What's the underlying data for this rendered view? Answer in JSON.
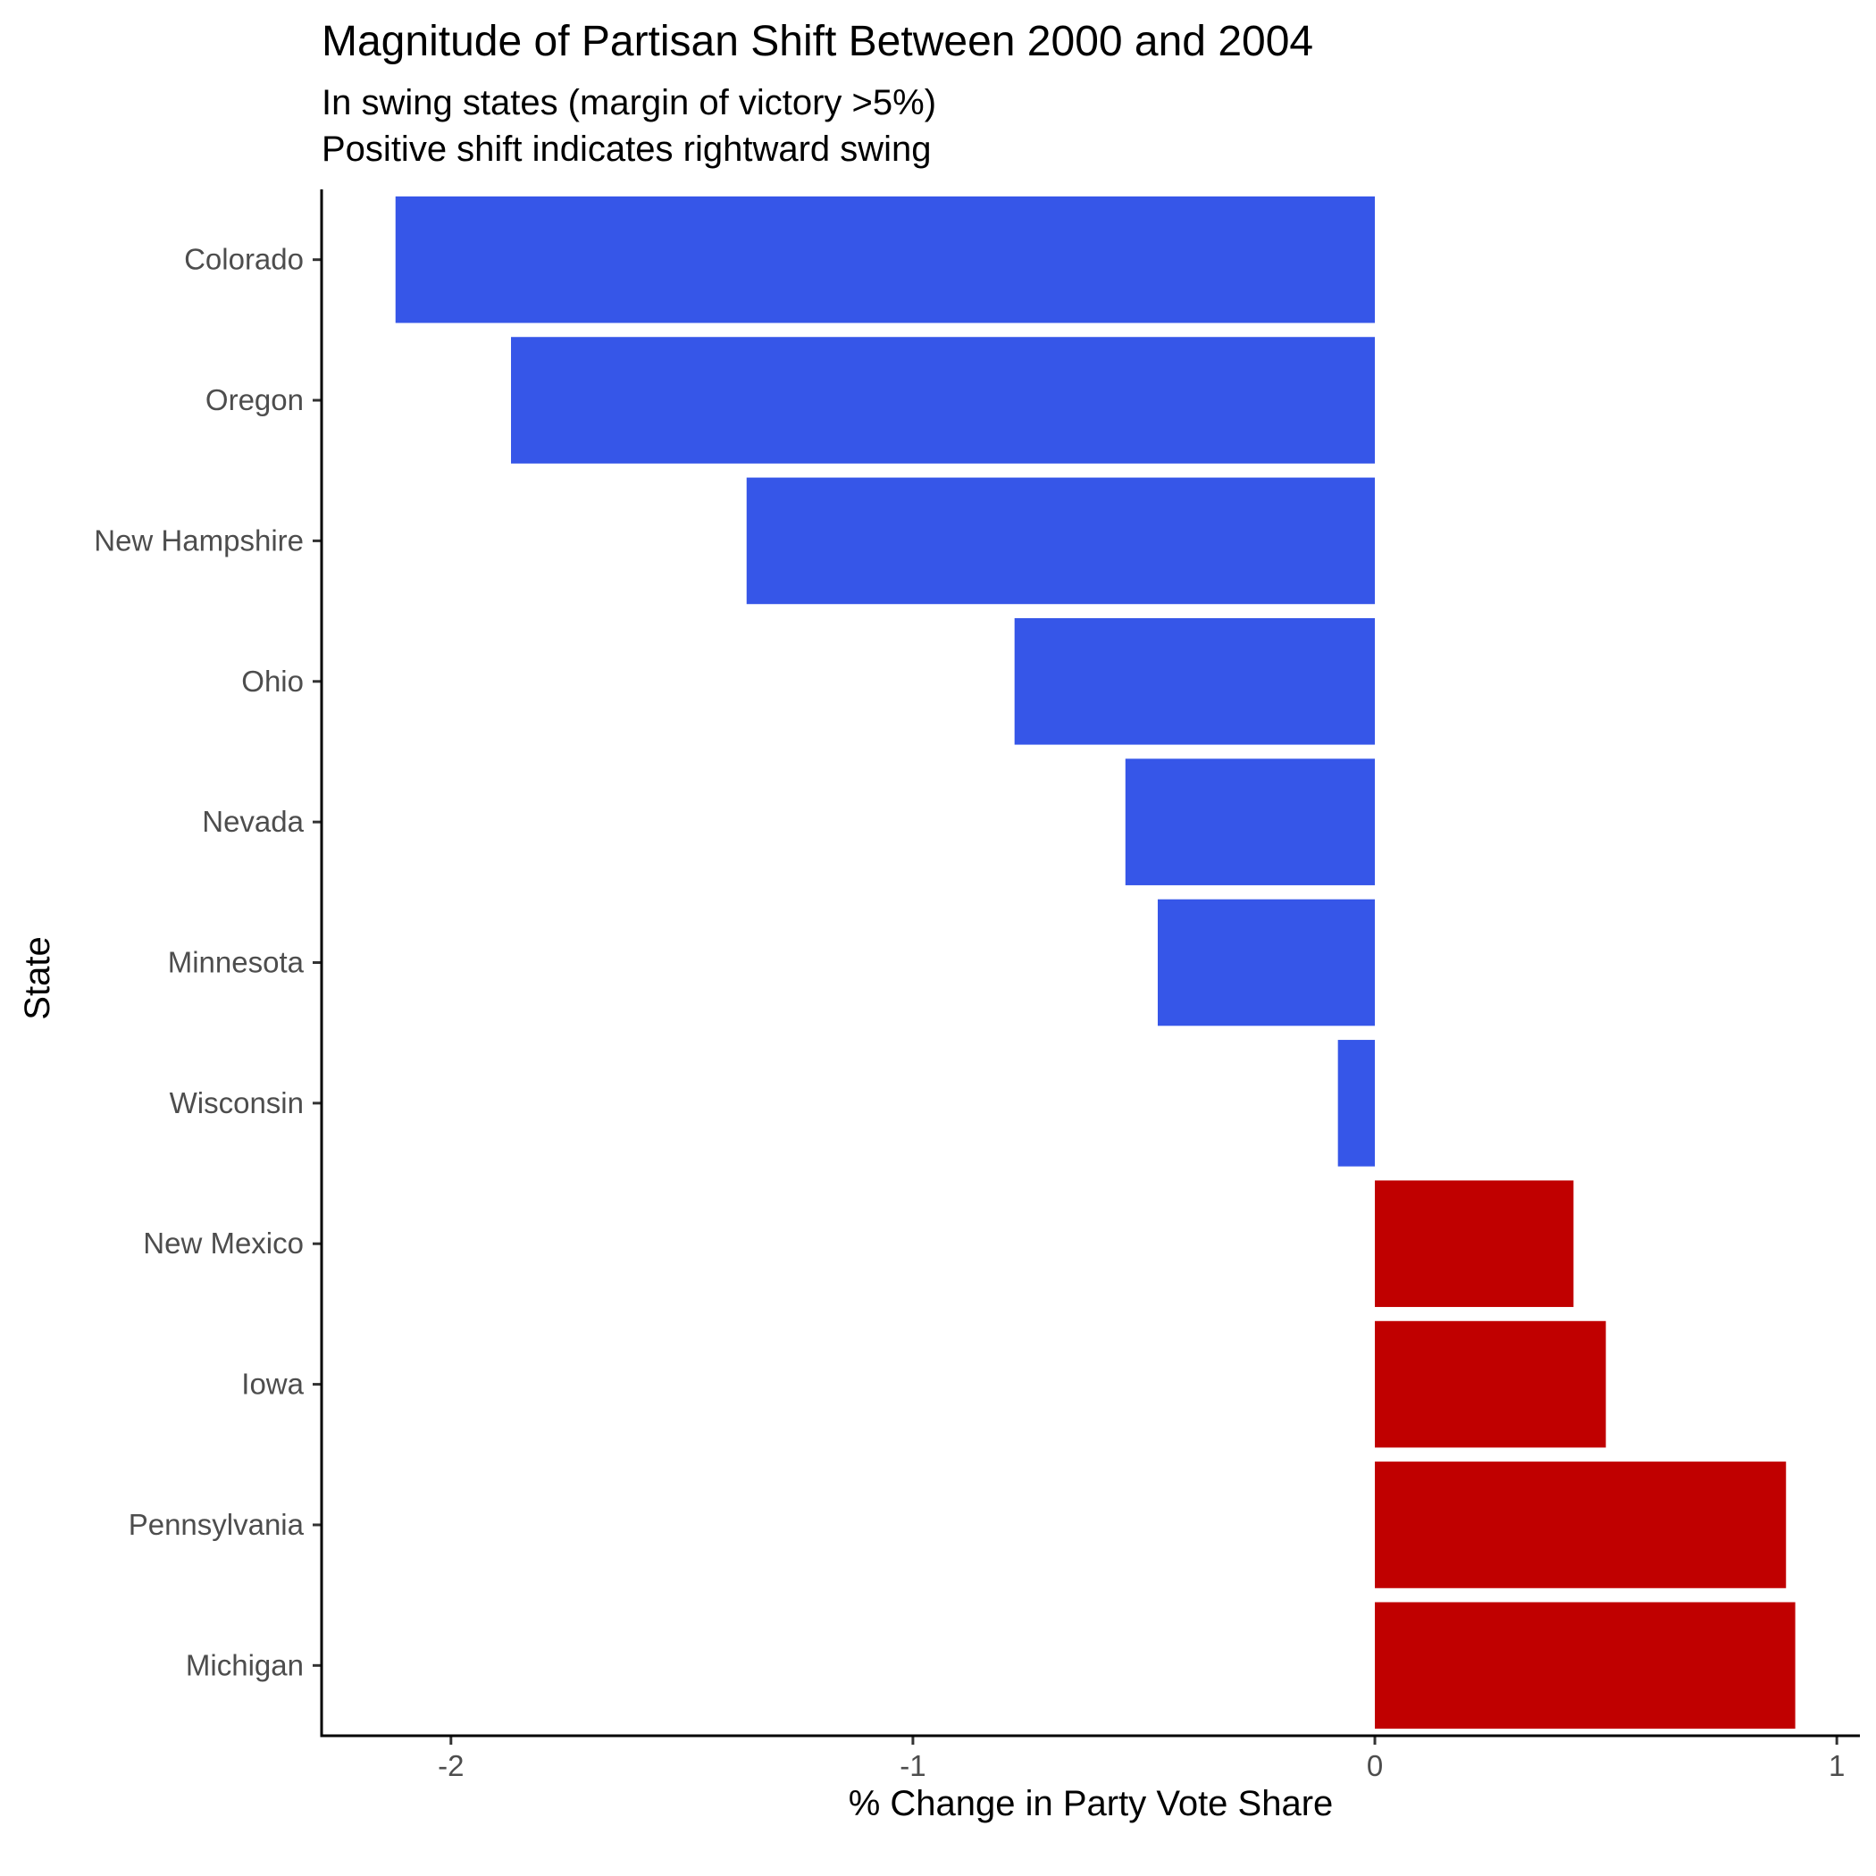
{
  "chart_data": {
    "type": "bar",
    "orientation": "horizontal",
    "title": "Magnitude of Partisan Shift Between 2000 and 2004",
    "subtitle_lines": [
      "In swing states (margin of victory >5%)",
      "Positive shift indicates rightward swing"
    ],
    "xlabel": "% Change in Party Vote Share",
    "ylabel": "State",
    "categories": [
      "Colorado",
      "Oregon",
      "New Hampshire",
      "Ohio",
      "Nevada",
      "Minnesota",
      "Wisconsin",
      "New Mexico",
      "Iowa",
      "Pennsylvania",
      "Michigan"
    ],
    "values": [
      -2.12,
      -1.87,
      -1.36,
      -0.78,
      -0.54,
      -0.47,
      -0.08,
      0.43,
      0.5,
      0.89,
      0.91
    ],
    "xlim": [
      -2.28,
      1.05
    ],
    "xticks": [
      -2,
      -1,
      0,
      1
    ],
    "xtick_labels": [
      "-2",
      "-1",
      "0",
      "1"
    ],
    "colors": {
      "negative": "#3656e8",
      "positive": "#c00000"
    },
    "grid": false,
    "legend": "none"
  }
}
